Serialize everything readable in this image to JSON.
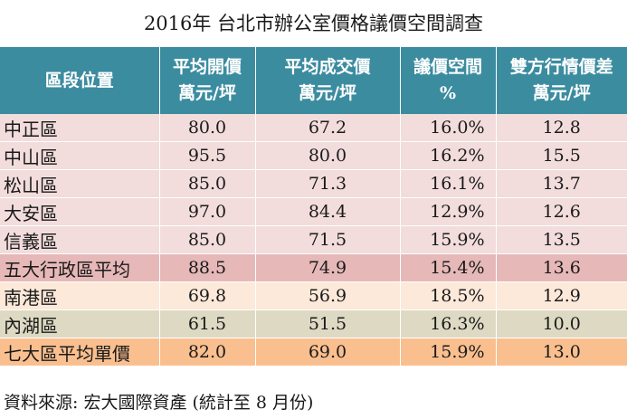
{
  "title": "2016年 台北市辦公室價格議價空間調查",
  "headers": [
    {
      "l1": "區段位置",
      "l2": ""
    },
    {
      "l1": "平均開價",
      "l2": "萬元/坪"
    },
    {
      "l1": "平均成交價",
      "l2": "萬元/坪"
    },
    {
      "l1": "議價空間",
      "l2": "%"
    },
    {
      "l1": "雙方行情價差",
      "l2": "萬元/坪"
    }
  ],
  "rows": [
    {
      "name": "中正區",
      "ask": "80.0",
      "deal": "67.2",
      "pct": "16.0%",
      "diff": "12.8"
    },
    {
      "name": "中山區",
      "ask": "95.5",
      "deal": "80.0",
      "pct": "16.2%",
      "diff": "15.5"
    },
    {
      "name": "松山區",
      "ask": "85.0",
      "deal": "71.3",
      "pct": "16.1%",
      "diff": "13.7"
    },
    {
      "name": "大安區",
      "ask": "97.0",
      "deal": "84.4",
      "pct": "12.9%",
      "diff": "12.6"
    },
    {
      "name": "信義區",
      "ask": "85.0",
      "deal": "71.5",
      "pct": "15.9%",
      "diff": "13.5"
    },
    {
      "name": "五大行政區平均",
      "ask": "88.5",
      "deal": "74.9",
      "pct": "15.4%",
      "diff": "13.6"
    },
    {
      "name": "南港區",
      "ask": "69.8",
      "deal": "56.9",
      "pct": "18.5%",
      "diff": "12.9"
    },
    {
      "name": "內湖區",
      "ask": "61.5",
      "deal": "51.5",
      "pct": "16.3%",
      "diff": "10.0"
    },
    {
      "name": "七大區平均單價",
      "ask": "82.0",
      "deal": "69.0",
      "pct": "15.9%",
      "diff": "13.0"
    }
  ],
  "source": "資料來源: 宏大國際資產 (統計至 8 月份)",
  "colors": {
    "header": "#3c8ca0",
    "row_pink": "#f2dcdc",
    "row_avg5": "#e6b8b8",
    "row_cream": "#fce9d9",
    "row_olive": "#ddd9c3",
    "row_avg7": "#fabf8f"
  }
}
